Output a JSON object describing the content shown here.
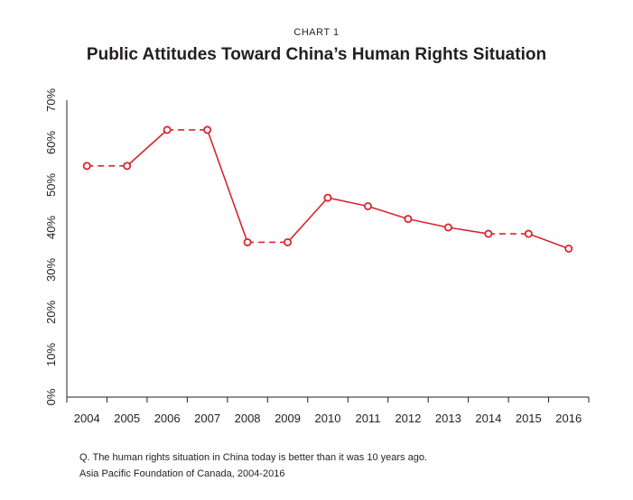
{
  "chart_label": "CHART 1",
  "chart_title": "Public Attitudes Toward China’s Human Rights Situation",
  "footnote_question": "Q. The human rights situation in China today is better than it was 10 years ago.",
  "footnote_source": "Asia Pacific Foundation of Canada, 2004-2016",
  "colors": {
    "series": "#d7262e",
    "axis": "#231f20"
  },
  "chart_data": {
    "type": "line",
    "title": "Public Attitudes Toward China’s Human Rights Situation",
    "xlabel": "",
    "ylabel": "",
    "ylim": [
      0,
      70
    ],
    "yticks": [
      0,
      10,
      20,
      30,
      40,
      50,
      60,
      70
    ],
    "ytick_labels": [
      "0%",
      "10%",
      "20%",
      "30%",
      "40%",
      "50%",
      "60%",
      "70%"
    ],
    "categories": [
      "2004",
      "2005",
      "2006",
      "2007",
      "2008",
      "2009",
      "2010",
      "2011",
      "2012",
      "2013",
      "2014",
      "2015",
      "2016"
    ],
    "grid": false,
    "legend": "none",
    "series": [
      {
        "values": [
          54.5,
          54.5,
          63,
          63,
          36.5,
          36.5,
          47,
          45,
          42,
          40,
          38.5,
          38.5,
          35
        ],
        "segment_styles": [
          "dashed",
          "solid",
          "dashed",
          "solid",
          "dashed",
          "solid",
          "solid",
          "solid",
          "solid",
          "solid",
          "dashed",
          "solid"
        ]
      }
    ]
  }
}
